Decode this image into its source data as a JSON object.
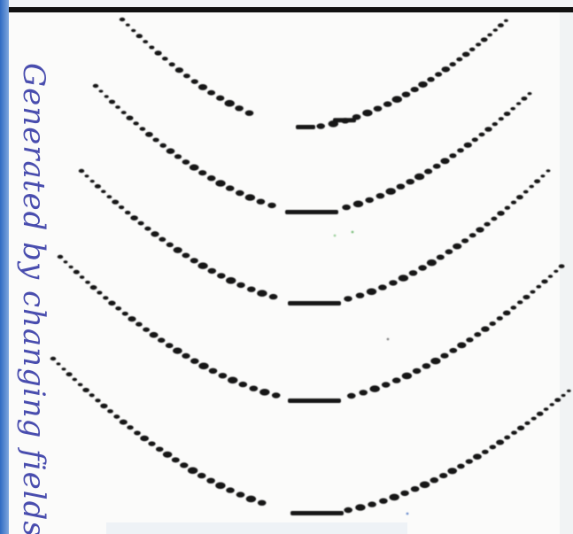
{
  "handwriting": {
    "text": "Generated by changing fields"
  },
  "colors": {
    "paper": "#fbfbfa",
    "ink_dots": "#151515",
    "top_rule": "#111111",
    "left_edge_blue": "#3d78c9",
    "handwriting_blue": "#3a3fa8"
  }
}
